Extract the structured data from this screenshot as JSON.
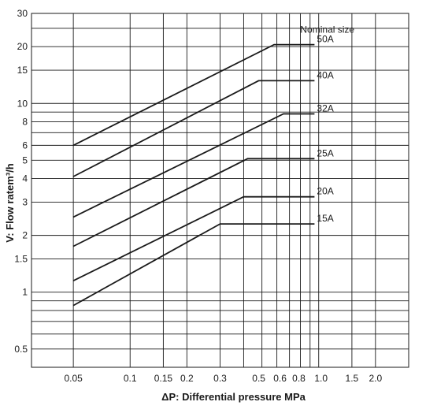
{
  "chart_data": {
    "type": "line",
    "title": "",
    "xlabel": "ΔP: Differential pressure MPa",
    "ylabel": "V: Flow ratem³/h",
    "x_scale": "log",
    "y_scale": "log",
    "xlim": [
      0.03,
      3.0
    ],
    "ylim": [
      0.4,
      30
    ],
    "grid": true,
    "legend_title": "Nominal size",
    "colors": {
      "line": "#1a1a1a",
      "grid": "#1a1a1a",
      "background": "#ffffff"
    },
    "x_ticks": [
      {
        "value": 0.05,
        "label": "0.05"
      },
      {
        "value": 0.1,
        "label": "0.1"
      },
      {
        "value": 0.15,
        "label": "0.15"
      },
      {
        "value": 0.2,
        "label": "0.2"
      },
      {
        "value": 0.3,
        "label": "0.3"
      },
      {
        "value": 0.5,
        "label": "0.5"
      },
      {
        "value": 0.6,
        "label": "0.6"
      },
      {
        "value": 0.8,
        "label": "0.8"
      },
      {
        "value": 1.0,
        "label": "1.0"
      },
      {
        "value": 1.5,
        "label": "1.5"
      },
      {
        "value": 2.0,
        "label": "2.0"
      }
    ],
    "x_grid": [
      0.05,
      0.1,
      0.15,
      0.2,
      0.3,
      0.4,
      0.5,
      0.6,
      0.7,
      0.8,
      0.9,
      1.0,
      1.5,
      2.0,
      3.0
    ],
    "y_ticks": [
      {
        "value": 0.5,
        "label": "0.5"
      },
      {
        "value": 1,
        "label": "1"
      },
      {
        "value": 1.5,
        "label": "1.5"
      },
      {
        "value": 2,
        "label": "2"
      },
      {
        "value": 3,
        "label": "3"
      },
      {
        "value": 4,
        "label": "4"
      },
      {
        "value": 5,
        "label": "5"
      },
      {
        "value": 6,
        "label": "6"
      },
      {
        "value": 8,
        "label": "8"
      },
      {
        "value": 10,
        "label": "10"
      },
      {
        "value": 15,
        "label": "15"
      },
      {
        "value": 20,
        "label": "20"
      },
      {
        "value": 30,
        "label": "30"
      }
    ],
    "y_grid": [
      0.5,
      0.6,
      0.7,
      0.8,
      0.9,
      1,
      1.5,
      2,
      3,
      4,
      5,
      6,
      7,
      8,
      9,
      10,
      15,
      20,
      25,
      30
    ],
    "series": [
      {
        "name": "50A",
        "points": [
          [
            0.05,
            6.0
          ],
          [
            0.58,
            20.5
          ],
          [
            0.95,
            20.5
          ]
        ]
      },
      {
        "name": "40A",
        "points": [
          [
            0.05,
            4.1
          ],
          [
            0.48,
            13.2
          ],
          [
            0.95,
            13.2
          ]
        ]
      },
      {
        "name": "32A",
        "points": [
          [
            0.05,
            2.5
          ],
          [
            0.65,
            8.8
          ],
          [
            0.95,
            8.8
          ]
        ]
      },
      {
        "name": "25A",
        "points": [
          [
            0.05,
            1.75
          ],
          [
            0.42,
            5.1
          ],
          [
            0.95,
            5.1
          ]
        ]
      },
      {
        "name": "20A",
        "points": [
          [
            0.05,
            1.15
          ],
          [
            0.4,
            3.2
          ],
          [
            0.95,
            3.2
          ]
        ]
      },
      {
        "name": "15A",
        "points": [
          [
            0.05,
            0.85
          ],
          [
            0.3,
            2.3
          ],
          [
            0.95,
            2.3
          ]
        ]
      }
    ]
  }
}
